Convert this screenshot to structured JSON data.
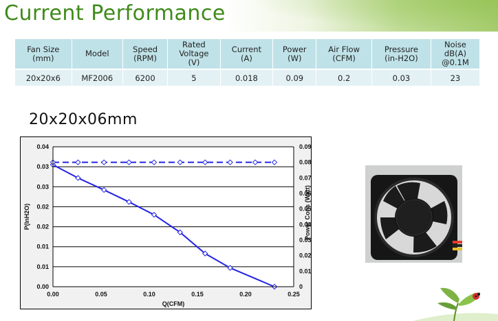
{
  "header": {
    "title": "Current Performance"
  },
  "specs_table": {
    "headers": [
      "Fan Size\n(mm)",
      "Model",
      "Speed\n(RPM)",
      "Rated\nVoltage\n(V)",
      "Current\n(A)",
      "Power\n(W)",
      "Air Flow\n(CFM)",
      "Pressure\n(in-H2O)",
      "Noise\ndB(A)\n@0.1M"
    ],
    "row": [
      "20x20x6",
      "MF2006",
      "6200",
      "5",
      "0.018",
      "0.09",
      "0.2",
      "0.03",
      "23"
    ]
  },
  "chart_heading": "20x20x06mm",
  "chart_data": {
    "type": "line",
    "xlabel": "Q(CFM)",
    "ylabel": "P(InH2O)",
    "y2label": "Power Cons (Watt)",
    "xlim": [
      0,
      0.25
    ],
    "ylim": [
      0,
      0.035
    ],
    "y2lim": [
      0,
      0.09
    ],
    "x_ticks": [
      "0.00",
      "0.05",
      "0.10",
      "0.15",
      "0.20",
      "0.25"
    ],
    "y_ticks": [
      "0.00",
      "0.01",
      "0.01",
      "0.02",
      "0.02",
      "0.03",
      "0.03",
      "0.04"
    ],
    "y2_ticks": [
      "0",
      "0.01",
      "0.02",
      "0.03",
      "0.04",
      "0.05",
      "0.06",
      "0.07",
      "0.08",
      "0.09"
    ],
    "grid": "horizontal",
    "series": [
      {
        "axis": "left",
        "style": "solid",
        "color": "#2323e6",
        "x": [
          0,
          0.026,
          0.053,
          0.079,
          0.105,
          0.132,
          0.158,
          0.184,
          0.23
        ],
        "y": [
          0.0305,
          0.0272,
          0.0242,
          0.0212,
          0.018,
          0.0136,
          0.0083,
          0.0047,
          0.0
        ]
      },
      {
        "axis": "right",
        "style": "dashed",
        "color": "#2323e6",
        "x": [
          0,
          0.026,
          0.053,
          0.079,
          0.105,
          0.132,
          0.158,
          0.184,
          0.21,
          0.23
        ],
        "y": [
          0.08,
          0.08,
          0.08,
          0.08,
          0.08,
          0.08,
          0.08,
          0.08,
          0.08,
          0.08
        ]
      }
    ]
  }
}
